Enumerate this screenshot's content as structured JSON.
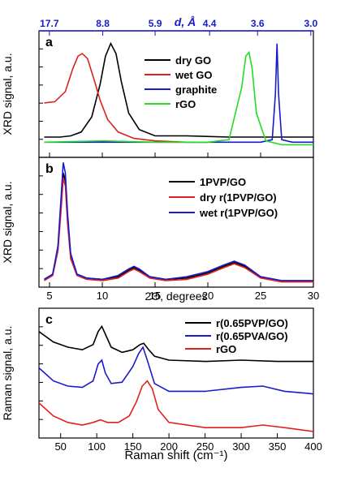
{
  "chart_data": [
    {
      "type": "line",
      "panel_label": "a",
      "ylabel": "XRD signal, a.u.",
      "xlim": [
        4,
        30
      ],
      "top_axis": {
        "label": "d, Å",
        "ticks": [
          17.7,
          8.8,
          5.9,
          4.4,
          3.6,
          3.0
        ],
        "tick_labels": [
          "17.7",
          "8.8",
          "5.9",
          "4.4",
          "3.6",
          "3.0"
        ]
      },
      "legend_position": "top-right",
      "series": [
        {
          "name": "dry GO",
          "color": "#000000",
          "x": [
            4.5,
            6,
            7,
            8,
            9,
            9.8,
            10.3,
            10.8,
            11.3,
            11.8,
            12.5,
            13.5,
            15,
            18,
            22,
            26,
            30
          ],
          "y": [
            0.16,
            0.16,
            0.17,
            0.2,
            0.32,
            0.58,
            0.8,
            0.9,
            0.82,
            0.6,
            0.35,
            0.22,
            0.17,
            0.17,
            0.16,
            0.16,
            0.16
          ]
        },
        {
          "name": "wet GO",
          "color": "#e02020",
          "x": [
            4.5,
            5.5,
            6.5,
            7.2,
            7.7,
            8.1,
            8.6,
            9.2,
            9.8,
            10.5,
            11.5,
            13,
            15,
            18,
            20
          ],
          "y": [
            0.43,
            0.44,
            0.52,
            0.7,
            0.8,
            0.82,
            0.78,
            0.62,
            0.45,
            0.3,
            0.2,
            0.15,
            0.13,
            0.12,
            0.12
          ]
        },
        {
          "name": "graphite",
          "color": "#1a1acc",
          "x": [
            4.5,
            10,
            20,
            25,
            26.1,
            26.4,
            26.55,
            26.7,
            27,
            28,
            30
          ],
          "y": [
            0.12,
            0.12,
            0.12,
            0.12,
            0.14,
            0.5,
            0.9,
            0.5,
            0.14,
            0.12,
            0.12
          ]
        },
        {
          "name": "rGO",
          "color": "#22dd22",
          "x": [
            4.5,
            10,
            15,
            20,
            22,
            23.2,
            23.6,
            23.9,
            24.2,
            24.6,
            25.5,
            27,
            30
          ],
          "y": [
            0.12,
            0.13,
            0.12,
            0.12,
            0.14,
            0.55,
            0.8,
            0.83,
            0.7,
            0.35,
            0.13,
            0.1,
            0.1
          ]
        }
      ]
    },
    {
      "type": "line",
      "panel_label": "b",
      "ylabel": "XRD signal, a.u.",
      "xlabel": "2Θ, degrees",
      "xlim": [
        4,
        30
      ],
      "xticks": [
        5,
        10,
        15,
        20,
        25,
        30
      ],
      "legend_position": "top-right",
      "series": [
        {
          "name": "1PVP/GO",
          "color": "#000000",
          "x": [
            4.5,
            5.3,
            5.8,
            6.1,
            6.3,
            6.5,
            6.7,
            7.0,
            7.6,
            8.5,
            10,
            11.5,
            12.5,
            13,
            13.5,
            14.5,
            16,
            18,
            20,
            21.5,
            22.5,
            23.5,
            25,
            27,
            30
          ],
          "y": [
            0.06,
            0.1,
            0.3,
            0.65,
            0.88,
            0.82,
            0.55,
            0.25,
            0.1,
            0.07,
            0.06,
            0.08,
            0.13,
            0.15,
            0.13,
            0.08,
            0.06,
            0.07,
            0.11,
            0.16,
            0.19,
            0.16,
            0.08,
            0.05,
            0.05
          ]
        },
        {
          "name": "dry r(1PVP/GO)",
          "color": "#e02020",
          "x": [
            4.5,
            5.3,
            5.8,
            6.1,
            6.3,
            6.5,
            6.7,
            7.0,
            7.6,
            8.5,
            10,
            11.5,
            12.5,
            13,
            13.5,
            14.5,
            16,
            18,
            20,
            21.5,
            22.5,
            23.5,
            25,
            27,
            30
          ],
          "y": [
            0.05,
            0.09,
            0.28,
            0.6,
            0.84,
            0.78,
            0.5,
            0.22,
            0.09,
            0.06,
            0.05,
            0.07,
            0.12,
            0.14,
            0.12,
            0.07,
            0.05,
            0.06,
            0.1,
            0.15,
            0.18,
            0.15,
            0.07,
            0.04,
            0.04
          ]
        },
        {
          "name": "wet r(1PVP/GO)",
          "color": "#1a1acc",
          "x": [
            4.5,
            5.3,
            5.8,
            6.1,
            6.3,
            6.5,
            6.7,
            7.0,
            7.6,
            8.5,
            10,
            11.5,
            12.5,
            13,
            13.5,
            14.5,
            16,
            18,
            20,
            21.5,
            22.5,
            23.5,
            25,
            27,
            30
          ],
          "y": [
            0.06,
            0.1,
            0.32,
            0.7,
            0.96,
            0.88,
            0.58,
            0.26,
            0.1,
            0.07,
            0.06,
            0.09,
            0.14,
            0.16,
            0.14,
            0.08,
            0.06,
            0.08,
            0.12,
            0.17,
            0.2,
            0.17,
            0.08,
            0.05,
            0.05
          ]
        }
      ]
    },
    {
      "type": "line",
      "panel_label": "c",
      "ylabel": "Raman signal, a.u.",
      "xlabel": "Raman shift (cm⁻¹)",
      "xlim": [
        20,
        400
      ],
      "xticks": [
        50,
        100,
        150,
        200,
        250,
        300,
        350,
        400
      ],
      "legend_position": "top-right",
      "series": [
        {
          "name": "r(0.65PVP/GO)",
          "color": "#000000",
          "x": [
            20,
            40,
            60,
            80,
            95,
            102,
            107,
            112,
            120,
            135,
            150,
            160,
            165,
            172,
            180,
            200,
            250,
            300,
            350,
            400
          ],
          "y": [
            0.82,
            0.74,
            0.7,
            0.68,
            0.72,
            0.82,
            0.86,
            0.8,
            0.7,
            0.66,
            0.68,
            0.72,
            0.73,
            0.68,
            0.63,
            0.6,
            0.59,
            0.6,
            0.59,
            0.59
          ]
        },
        {
          "name": "r(0.65PVA/GO)",
          "color": "#1a1acc",
          "x": [
            20,
            40,
            60,
            80,
            95,
            102,
            107,
            112,
            120,
            135,
            150,
            158,
            164,
            170,
            180,
            200,
            250,
            300,
            330,
            360,
            400
          ],
          "y": [
            0.54,
            0.44,
            0.4,
            0.39,
            0.44,
            0.57,
            0.6,
            0.5,
            0.42,
            0.43,
            0.55,
            0.65,
            0.7,
            0.6,
            0.42,
            0.36,
            0.36,
            0.39,
            0.4,
            0.36,
            0.34
          ]
        },
        {
          "name": "rGO",
          "color": "#e02020",
          "x": [
            20,
            40,
            60,
            80,
            95,
            105,
            115,
            130,
            145,
            155,
            163,
            170,
            177,
            185,
            200,
            250,
            300,
            330,
            360,
            400
          ],
          "y": [
            0.27,
            0.17,
            0.12,
            0.1,
            0.12,
            0.14,
            0.12,
            0.12,
            0.17,
            0.28,
            0.4,
            0.44,
            0.38,
            0.22,
            0.12,
            0.08,
            0.08,
            0.1,
            0.08,
            0.05
          ]
        }
      ]
    }
  ]
}
